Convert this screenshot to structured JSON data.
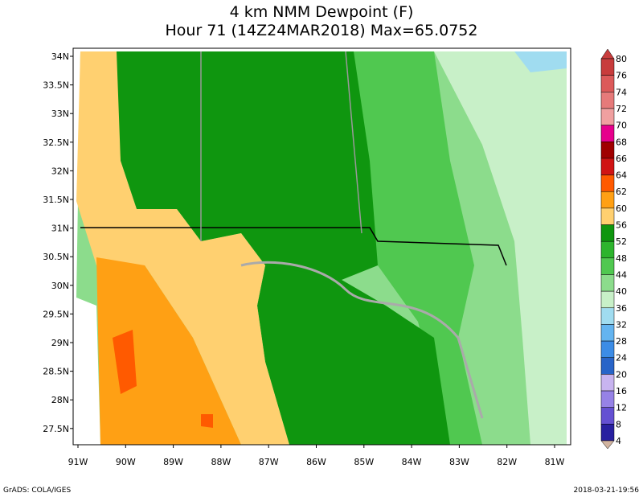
{
  "title": {
    "line1": "4 km NMM Dewpoint (F)",
    "line2": "Hour 71 (14Z24MAR2018) Max=65.0752"
  },
  "lat_labels": [
    "34N",
    "33.5N",
    "33N",
    "32.5N",
    "32N",
    "31.5N",
    "31N",
    "30.5N",
    "30N",
    "29.5N",
    "29N",
    "28.5N",
    "28N",
    "27.5N"
  ],
  "lon_labels": [
    "91W",
    "90W",
    "89W",
    "88W",
    "87W",
    "86W",
    "85W",
    "84W",
    "83W",
    "82W",
    "81W"
  ],
  "colorbar": {
    "labels": [
      "80",
      "76",
      "74",
      "72",
      "70",
      "68",
      "66",
      "64",
      "62",
      "60",
      "56",
      "52",
      "48",
      "44",
      "40",
      "36",
      "32",
      "28",
      "24",
      "20",
      "16",
      "12",
      "8",
      "4"
    ],
    "colors": [
      "#c83c3c",
      "#dc5a5a",
      "#e67a7a",
      "#f0a0a0",
      "#e6008c",
      "#a00000",
      "#d01414",
      "#ff5a00",
      "#ffa014",
      "#ffd070",
      "#0f960f",
      "#2db42d",
      "#50c850",
      "#8cdc8c",
      "#c8f0c8",
      "#a0dcf0",
      "#64b4f0",
      "#3c8ce6",
      "#2864c8",
      "#c8b4f0",
      "#9682e6",
      "#6450d2",
      "#2820a0"
    ]
  },
  "footer": {
    "left": "GrADS: COLA/IGES",
    "right": "2018-03-21-19:56"
  }
}
